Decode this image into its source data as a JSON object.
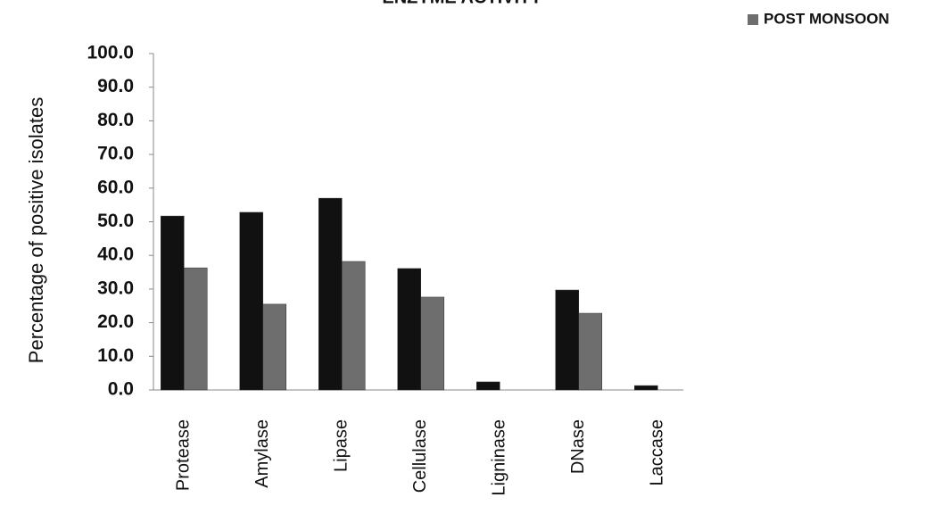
{
  "chart_data": {
    "type": "bar",
    "title": "ENZYME ACTIVITY",
    "y_label": "Percentage of positive isolates",
    "categories": [
      "Protease",
      "Amylase",
      "Lipase",
      "Cellulase",
      "Ligninase",
      "DNase",
      "Laccase"
    ],
    "series": [
      {
        "color": "#111111",
        "values": [
          51.7,
          52.8,
          57.0,
          36.1,
          2.4,
          29.7,
          1.3
        ]
      },
      {
        "name": "POST MONSOON",
        "color": "#6e6e6e",
        "values": [
          36.3,
          25.5,
          38.2,
          27.6,
          0,
          22.8,
          0
        ]
      }
    ],
    "ylim": [
      0,
      100
    ],
    "yticks": [
      {
        "value": 0,
        "label": "0.0"
      },
      {
        "value": 10,
        "label": "10.0"
      },
      {
        "value": 20,
        "label": "20.0"
      },
      {
        "value": 30,
        "label": "30.0"
      },
      {
        "value": 40,
        "label": "40.0"
      },
      {
        "value": 50,
        "label": "50.0"
      },
      {
        "value": 60,
        "label": "60.0"
      },
      {
        "value": 70,
        "label": "70.0"
      },
      {
        "value": 80,
        "label": "80.0"
      },
      {
        "value": 90,
        "label": "90.0"
      },
      {
        "value": 100,
        "label": "100.0"
      }
    ],
    "legend": "top-right"
  }
}
